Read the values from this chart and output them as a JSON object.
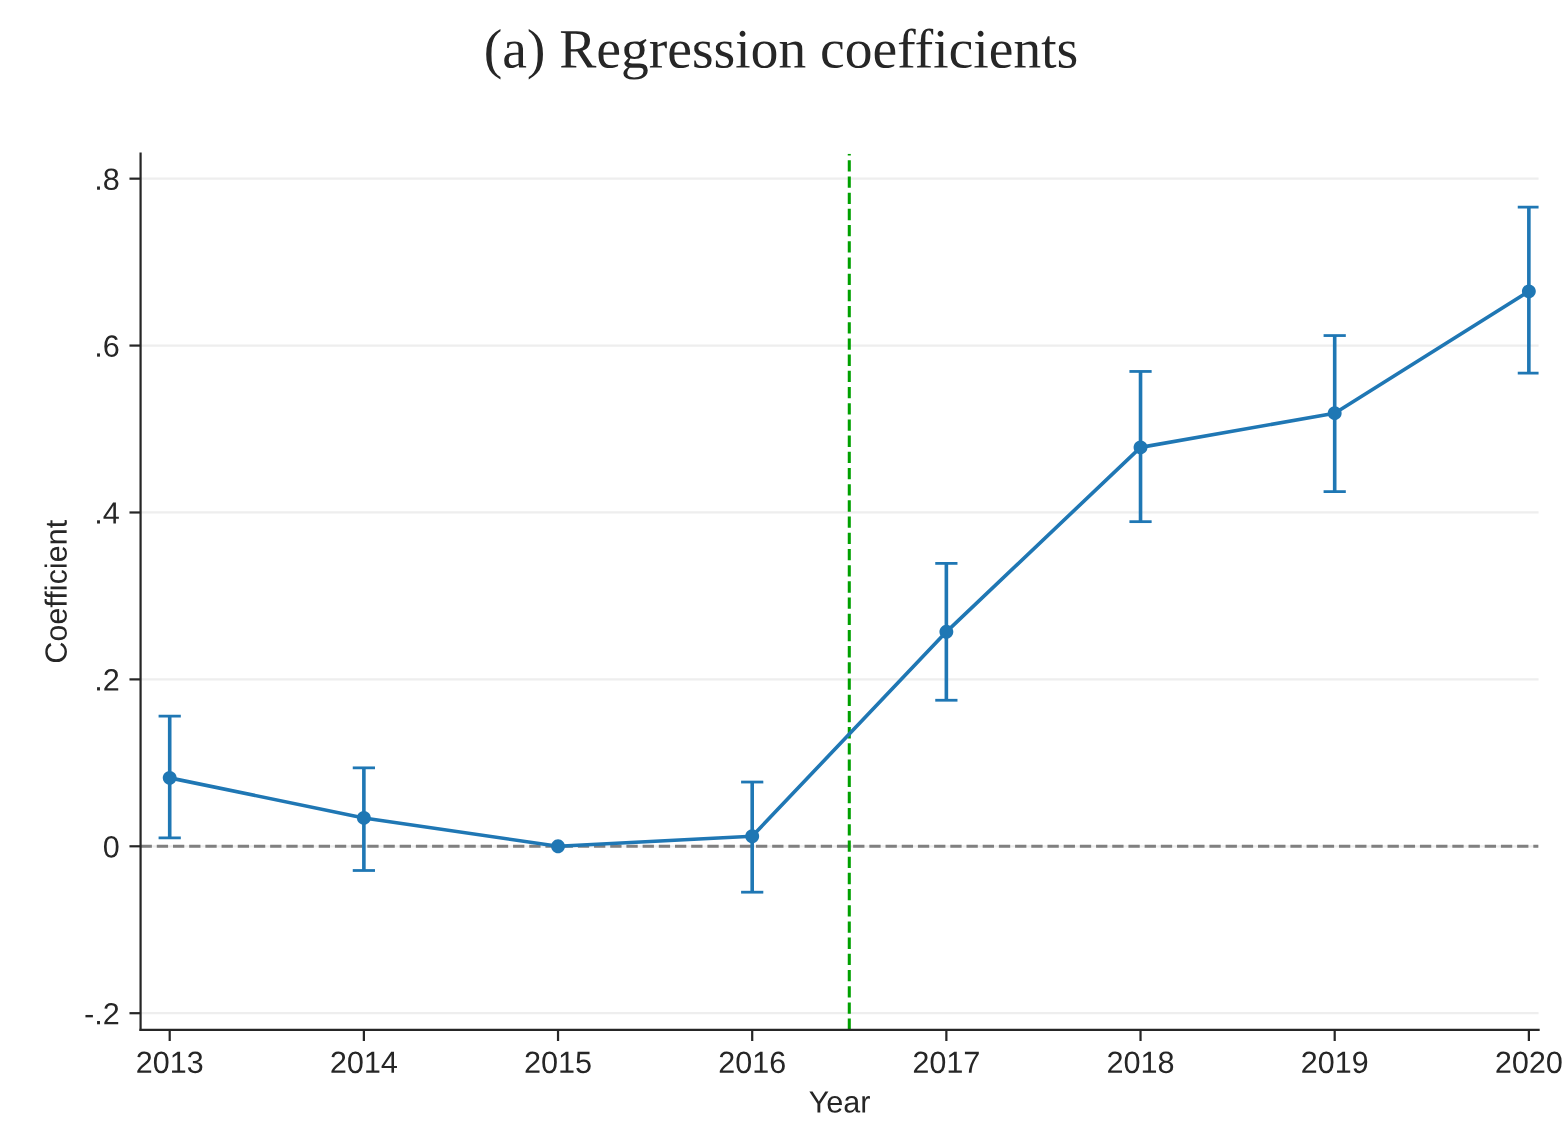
{
  "chart_data": {
    "type": "line",
    "title": "(a) Regression coefficients",
    "xlabel": "Year",
    "ylabel": "Coefficient",
    "x": [
      2013,
      2014,
      2015,
      2016,
      2017,
      2018,
      2019,
      2020
    ],
    "series": [
      {
        "color": "#1f77b4",
        "values": [
          0.082,
          0.034,
          0.0,
          0.012,
          0.257,
          0.478,
          0.519,
          0.665
        ],
        "errors": [
          [
            0.01,
            0.156
          ],
          [
            -0.029,
            0.094
          ],
          null,
          [
            -0.055,
            0.077
          ],
          [
            0.175,
            0.339
          ],
          [
            0.389,
            0.569
          ],
          [
            0.425,
            0.612
          ],
          [
            0.567,
            0.766
          ]
        ]
      }
    ],
    "xlim": [
      2012.85,
      2020.05
    ],
    "ylim": [
      -0.22,
      0.83
    ],
    "xticks": [
      2013,
      2014,
      2015,
      2016,
      2017,
      2018,
      2019,
      2020
    ],
    "yticks": [
      {
        "value": -0.2,
        "label": "-.2"
      },
      {
        "value": 0,
        "label": "0"
      },
      {
        "value": 0.2,
        "label": ".2"
      },
      {
        "value": 0.4,
        "label": ".4"
      },
      {
        "value": 0.6,
        "label": ".6"
      },
      {
        "value": 0.8,
        "label": ".8"
      }
    ],
    "ref_lines": [
      {
        "axis": "y",
        "value": 0,
        "color": "#808080",
        "line_style": "dashed"
      },
      {
        "axis": "x",
        "value": 2016.5,
        "color": "#00a000",
        "line_style": "dashed"
      }
    ],
    "grid": "y",
    "marker": "circle",
    "line_style": "solid",
    "legend": false
  }
}
